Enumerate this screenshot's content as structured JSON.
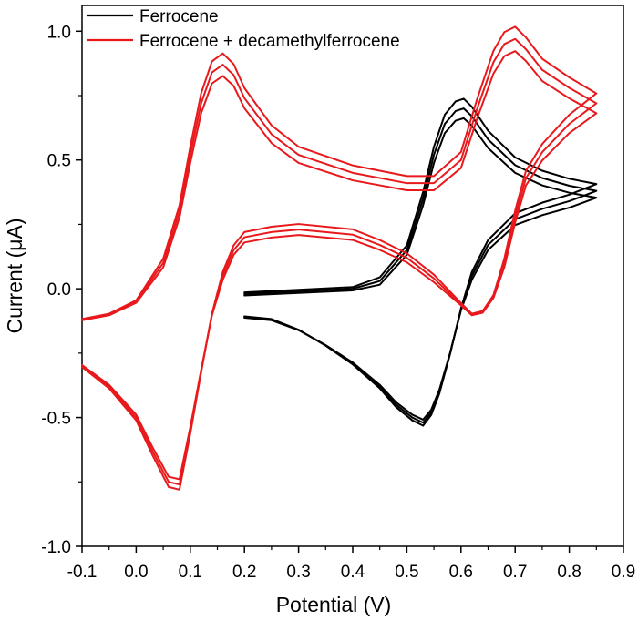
{
  "chart_data": {
    "type": "line",
    "title": "",
    "xlabel": "Potential (V)",
    "ylabel": "Current (μA)",
    "xlim": [
      -0.1,
      0.9
    ],
    "ylim": [
      -1.0,
      1.1
    ],
    "x_ticks": [
      -0.1,
      0.0,
      0.1,
      0.2,
      0.3,
      0.4,
      0.5,
      0.6,
      0.7,
      0.8,
      0.9
    ],
    "x_tick_labels": [
      "-0.1",
      "0.0",
      "0.1",
      "0.2",
      "0.3",
      "0.4",
      "0.5",
      "0.6",
      "0.7",
      "0.8",
      "0.9"
    ],
    "y_ticks": [
      -1.0,
      -0.5,
      0.0,
      0.5,
      1.0
    ],
    "y_tick_labels": [
      "-1.0",
      "-0.5",
      "0.0",
      "0.5",
      "1.0"
    ],
    "grid": false,
    "legend_position": "top-left",
    "series": [
      {
        "name": "Ferrocene",
        "color": "#000000",
        "cycles": 3,
        "x": [
          0.2,
          0.3,
          0.4,
          0.45,
          0.5,
          0.53,
          0.55,
          0.57,
          0.59,
          0.605,
          0.62,
          0.65,
          0.7,
          0.75,
          0.8,
          0.85,
          0.8,
          0.75,
          0.7,
          0.65,
          0.62,
          0.6,
          0.58,
          0.56,
          0.545,
          0.53,
          0.51,
          0.48,
          0.45,
          0.4,
          0.35,
          0.3,
          0.25,
          0.2
        ],
        "y": [
          -0.02,
          -0.01,
          0.0,
          0.03,
          0.15,
          0.35,
          0.52,
          0.64,
          0.69,
          0.7,
          0.67,
          0.58,
          0.48,
          0.43,
          0.4,
          0.38,
          0.34,
          0.31,
          0.27,
          0.17,
          0.05,
          -0.08,
          -0.25,
          -0.4,
          -0.48,
          -0.52,
          -0.5,
          -0.45,
          -0.38,
          -0.29,
          -0.22,
          -0.16,
          -0.12,
          -0.11
        ]
      },
      {
        "name": "Ferrocene + decamethylferrocene",
        "color": "#e8191c",
        "cycles": 3,
        "x": [
          -0.1,
          -0.05,
          0.0,
          0.05,
          0.08,
          0.1,
          0.12,
          0.14,
          0.16,
          0.18,
          0.2,
          0.25,
          0.3,
          0.4,
          0.5,
          0.55,
          0.6,
          0.63,
          0.66,
          0.68,
          0.7,
          0.72,
          0.75,
          0.8,
          0.85,
          0.8,
          0.75,
          0.72,
          0.7,
          0.68,
          0.66,
          0.64,
          0.62,
          0.6,
          0.55,
          0.5,
          0.45,
          0.4,
          0.3,
          0.25,
          0.2,
          0.18,
          0.16,
          0.14,
          0.12,
          0.1,
          0.08,
          0.06,
          0.03,
          0.0,
          -0.05,
          -0.1
        ],
        "y": [
          -0.12,
          -0.1,
          -0.05,
          0.1,
          0.3,
          0.52,
          0.72,
          0.84,
          0.87,
          0.83,
          0.74,
          0.6,
          0.52,
          0.45,
          0.41,
          0.41,
          0.5,
          0.7,
          0.88,
          0.95,
          0.97,
          0.93,
          0.85,
          0.78,
          0.72,
          0.64,
          0.53,
          0.43,
          0.28,
          0.1,
          -0.03,
          -0.09,
          -0.1,
          -0.06,
          0.04,
          0.12,
          0.17,
          0.21,
          0.23,
          0.22,
          0.2,
          0.15,
          0.05,
          -0.1,
          -0.32,
          -0.55,
          -0.76,
          -0.75,
          -0.63,
          -0.5,
          -0.38,
          -0.3
        ]
      }
    ]
  }
}
